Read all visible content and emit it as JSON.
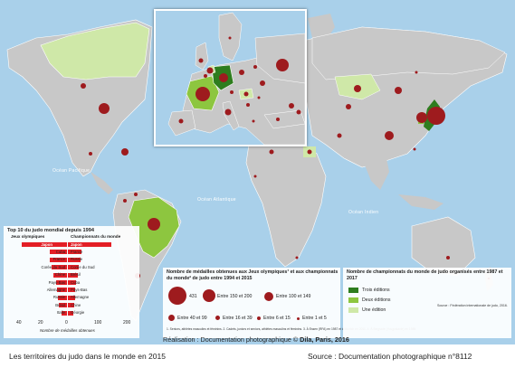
{
  "oceans": {
    "pacific": "Océan Pacifique",
    "atlantic": "Océan Atlantique",
    "indian": "Océan Indien"
  },
  "top10": {
    "title": "Top 10 du judo mondial depuis 1994",
    "left_header": "Jeux olympiques",
    "right_header": "Championnats du monde",
    "left_countries": [
      "Japon",
      "Cuba",
      "France",
      "Corée du Sud",
      "Chine",
      "Pays-Bas",
      "Allemagne",
      "Russie",
      "Brésil",
      "Italie"
    ],
    "right_countries": [
      "Japon",
      "France",
      "Russie",
      "Corée du Sud",
      "Brésil",
      "Cuba",
      "Pays-Bas",
      "Allemagne",
      "Chine",
      "Géorgie"
    ],
    "left_values": [
      40,
      15,
      15,
      14,
      12,
      10,
      9,
      8,
      7,
      5
    ],
    "right_values": [
      160,
      50,
      45,
      40,
      35,
      30,
      28,
      25,
      23,
      20
    ],
    "axis_left": "40",
    "axis_mid_left": "20",
    "axis_zero": "0",
    "axis_right": "100",
    "axis_far_right": "200",
    "axis_label": "Nombre de médailles obtenues"
  },
  "medals_legend": {
    "title": "Nombre de médailles obtenues aux Jeux olympiques¹ et aux championnats du monde² de judo entre 1994 et 2015",
    "items": [
      "431",
      "Entre 150 et 200",
      "Entre 100 et 149",
      "Entre 40 et 99",
      "Entre 16 et 39",
      "Entre 6 et 15",
      "Entre 1 et 5"
    ],
    "footnote": "1. Seniors, athlètes masculins et féminins. 2. Cadets, juniors et seniors, athlètes masculins et féminins. 3. À Essen (RFA) en 1987 et à Munich en 2011. 4. À Belgrade (Yougoslavie) en 1989."
  },
  "champ_legend": {
    "title": "Nombre de championnats du monde de judo organisés entre 1987 et 2017",
    "items": [
      "Trois éditions",
      "Deux éditions",
      "Une édition"
    ],
    "colors": [
      "#2e7d1e",
      "#8dc63f",
      "#cfe8a8"
    ],
    "source": "Source : Fédération internationale de judo, 2016."
  },
  "realisation": {
    "prefix": "Réalisation : Documentation photographique © ",
    "bold": "Dila, Paris, 2016"
  },
  "caption": {
    "left": "Les territoires du judo dans le monde en 2015",
    "right": "Source : Documentation photographique n°8112"
  },
  "colors": {
    "ocean": "#a9d0ea",
    "land": "#c8c8c8",
    "medal": "#9e1b1e",
    "bar": "#e31e25"
  }
}
